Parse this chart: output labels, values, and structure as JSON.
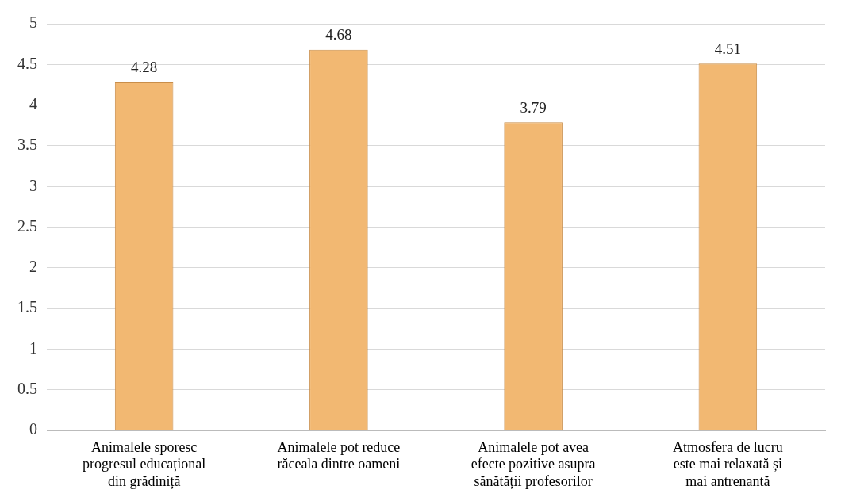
{
  "chart_data": {
    "type": "bar",
    "categories": [
      "Animalele sporesc progresul educațional din grădiniță",
      "Animalele pot reduce răceala dintre oameni",
      "Animalele pot avea efecte pozitive asupra sănătății profesorilor",
      "Atmosfera de lucru este mai relaxată și mai antrenantă"
    ],
    "values": [
      4.28,
      4.68,
      3.79,
      4.51
    ],
    "color": "#f2b872",
    "ylim": [
      0,
      5
    ],
    "yticks": [
      0,
      0.5,
      1,
      1.5,
      2,
      2.5,
      3,
      3.5,
      4,
      4.5,
      5
    ],
    "grid": "y",
    "legend": false,
    "data_labels": true
  }
}
